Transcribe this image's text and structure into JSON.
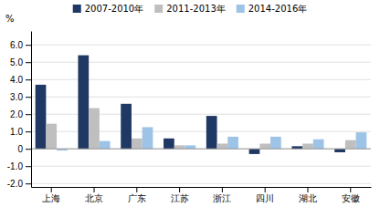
{
  "chart_data": {
    "type": "bar",
    "categories": [
      "上海",
      "北京",
      "广东",
      "江苏",
      "浙江",
      "四川",
      "湖北",
      "安徽"
    ],
    "series": [
      {
        "name": "2007-2010年",
        "color": "#1F3864",
        "values": [
          3.7,
          5.4,
          2.6,
          0.6,
          1.9,
          -0.3,
          0.15,
          -0.2
        ]
      },
      {
        "name": "2011-2013年",
        "color": "#BFBFBF",
        "values": [
          1.45,
          2.35,
          0.6,
          0.2,
          0.3,
          0.3,
          0.3,
          0.5
        ]
      },
      {
        "name": "2014-2016年",
        "color": "#9DC3E6",
        "values": [
          -0.1,
          0.45,
          1.25,
          0.2,
          0.7,
          0.7,
          0.55,
          0.95
        ]
      }
    ],
    "ylabel": "%",
    "ylim": [
      -2.2,
      6.8
    ],
    "yticks": [
      {
        "value": -2.0,
        "label": "-2.0"
      },
      {
        "value": -1.0,
        "label": "-1.0"
      },
      0,
      {
        "value": 1.0,
        "label": "1.0"
      },
      {
        "value": 2.0,
        "label": "2.0"
      },
      {
        "value": 3.0,
        "label": "3.0"
      },
      {
        "value": 4.0,
        "label": "4.0"
      },
      {
        "value": 5.0,
        "label": "5.0"
      },
      {
        "value": 6.0,
        "label": "6.0"
      }
    ],
    "grid": true,
    "legend": "top"
  }
}
